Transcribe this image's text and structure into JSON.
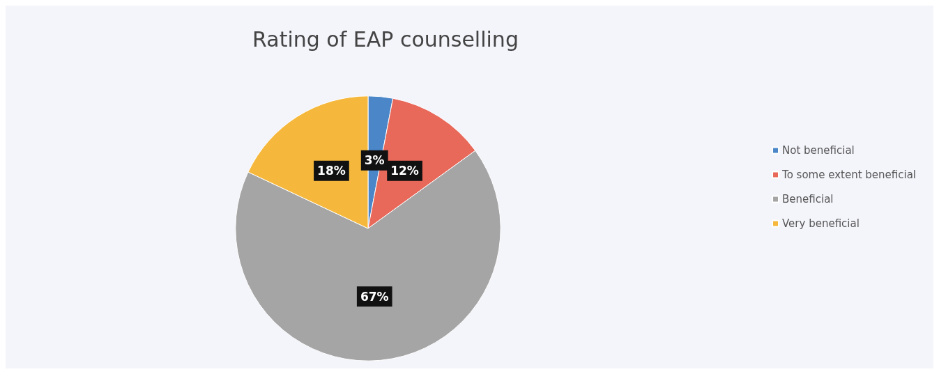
{
  "chart_data": {
    "type": "pie",
    "title": "Rating of EAP counselling",
    "categories": [
      "Not beneficial",
      "To some extent beneficial",
      "Beneficial",
      "Very beneficial"
    ],
    "values": [
      3,
      12,
      67,
      18
    ],
    "colors": [
      "#4a86c8",
      "#e8685a",
      "#a5a5a5",
      "#f5b83d"
    ],
    "value_labels": [
      "3%",
      "12%",
      "67%",
      "18%"
    ],
    "legend": "right"
  }
}
